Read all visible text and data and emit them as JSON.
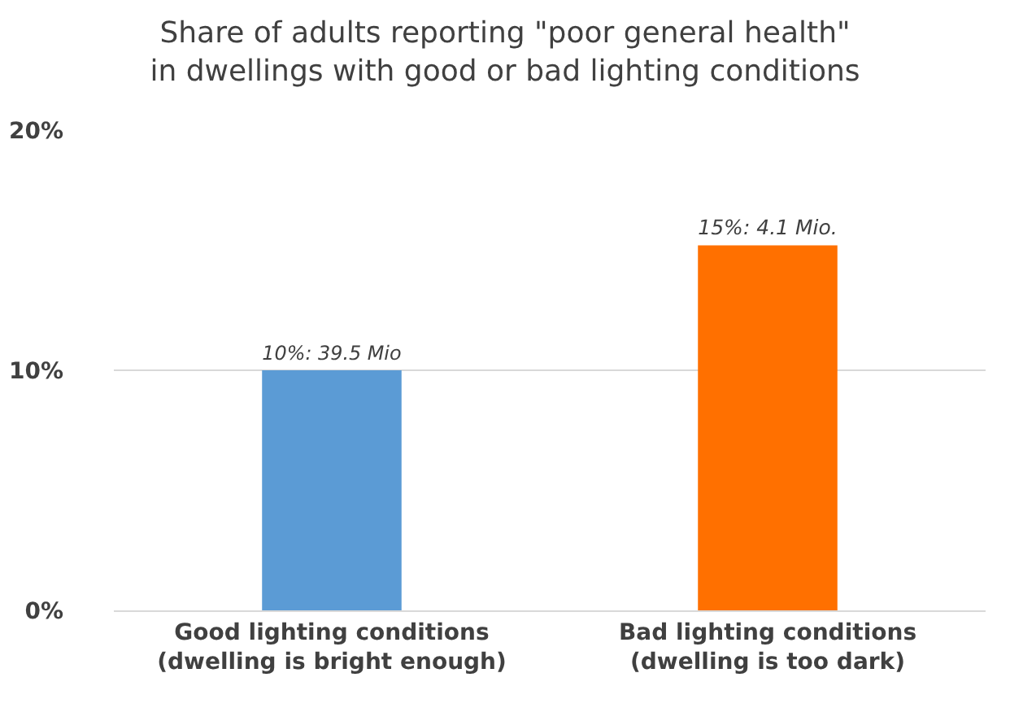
{
  "chart_data": {
    "type": "bar",
    "title": "Share of adults reporting \"poor general health\"\nin dwellings with good or bad lighting conditions",
    "categories": [
      "Good lighting conditions\n(dwelling is bright enough)",
      "Bad lighting conditions\n(dwelling is too dark)"
    ],
    "values": [
      10,
      15.2
    ],
    "colors": [
      "#5b9bd5",
      "#ff7000"
    ],
    "value_labels": [
      "10%: 39.5 Mio",
      "15%: 4.1 Mio."
    ],
    "ylim": [
      0,
      20
    ],
    "yticks": [
      {
        "value": 0,
        "label": "0%"
      },
      {
        "value": 10,
        "label": "10%"
      },
      {
        "value": 20,
        "label": "20%"
      }
    ],
    "grid": "y"
  }
}
